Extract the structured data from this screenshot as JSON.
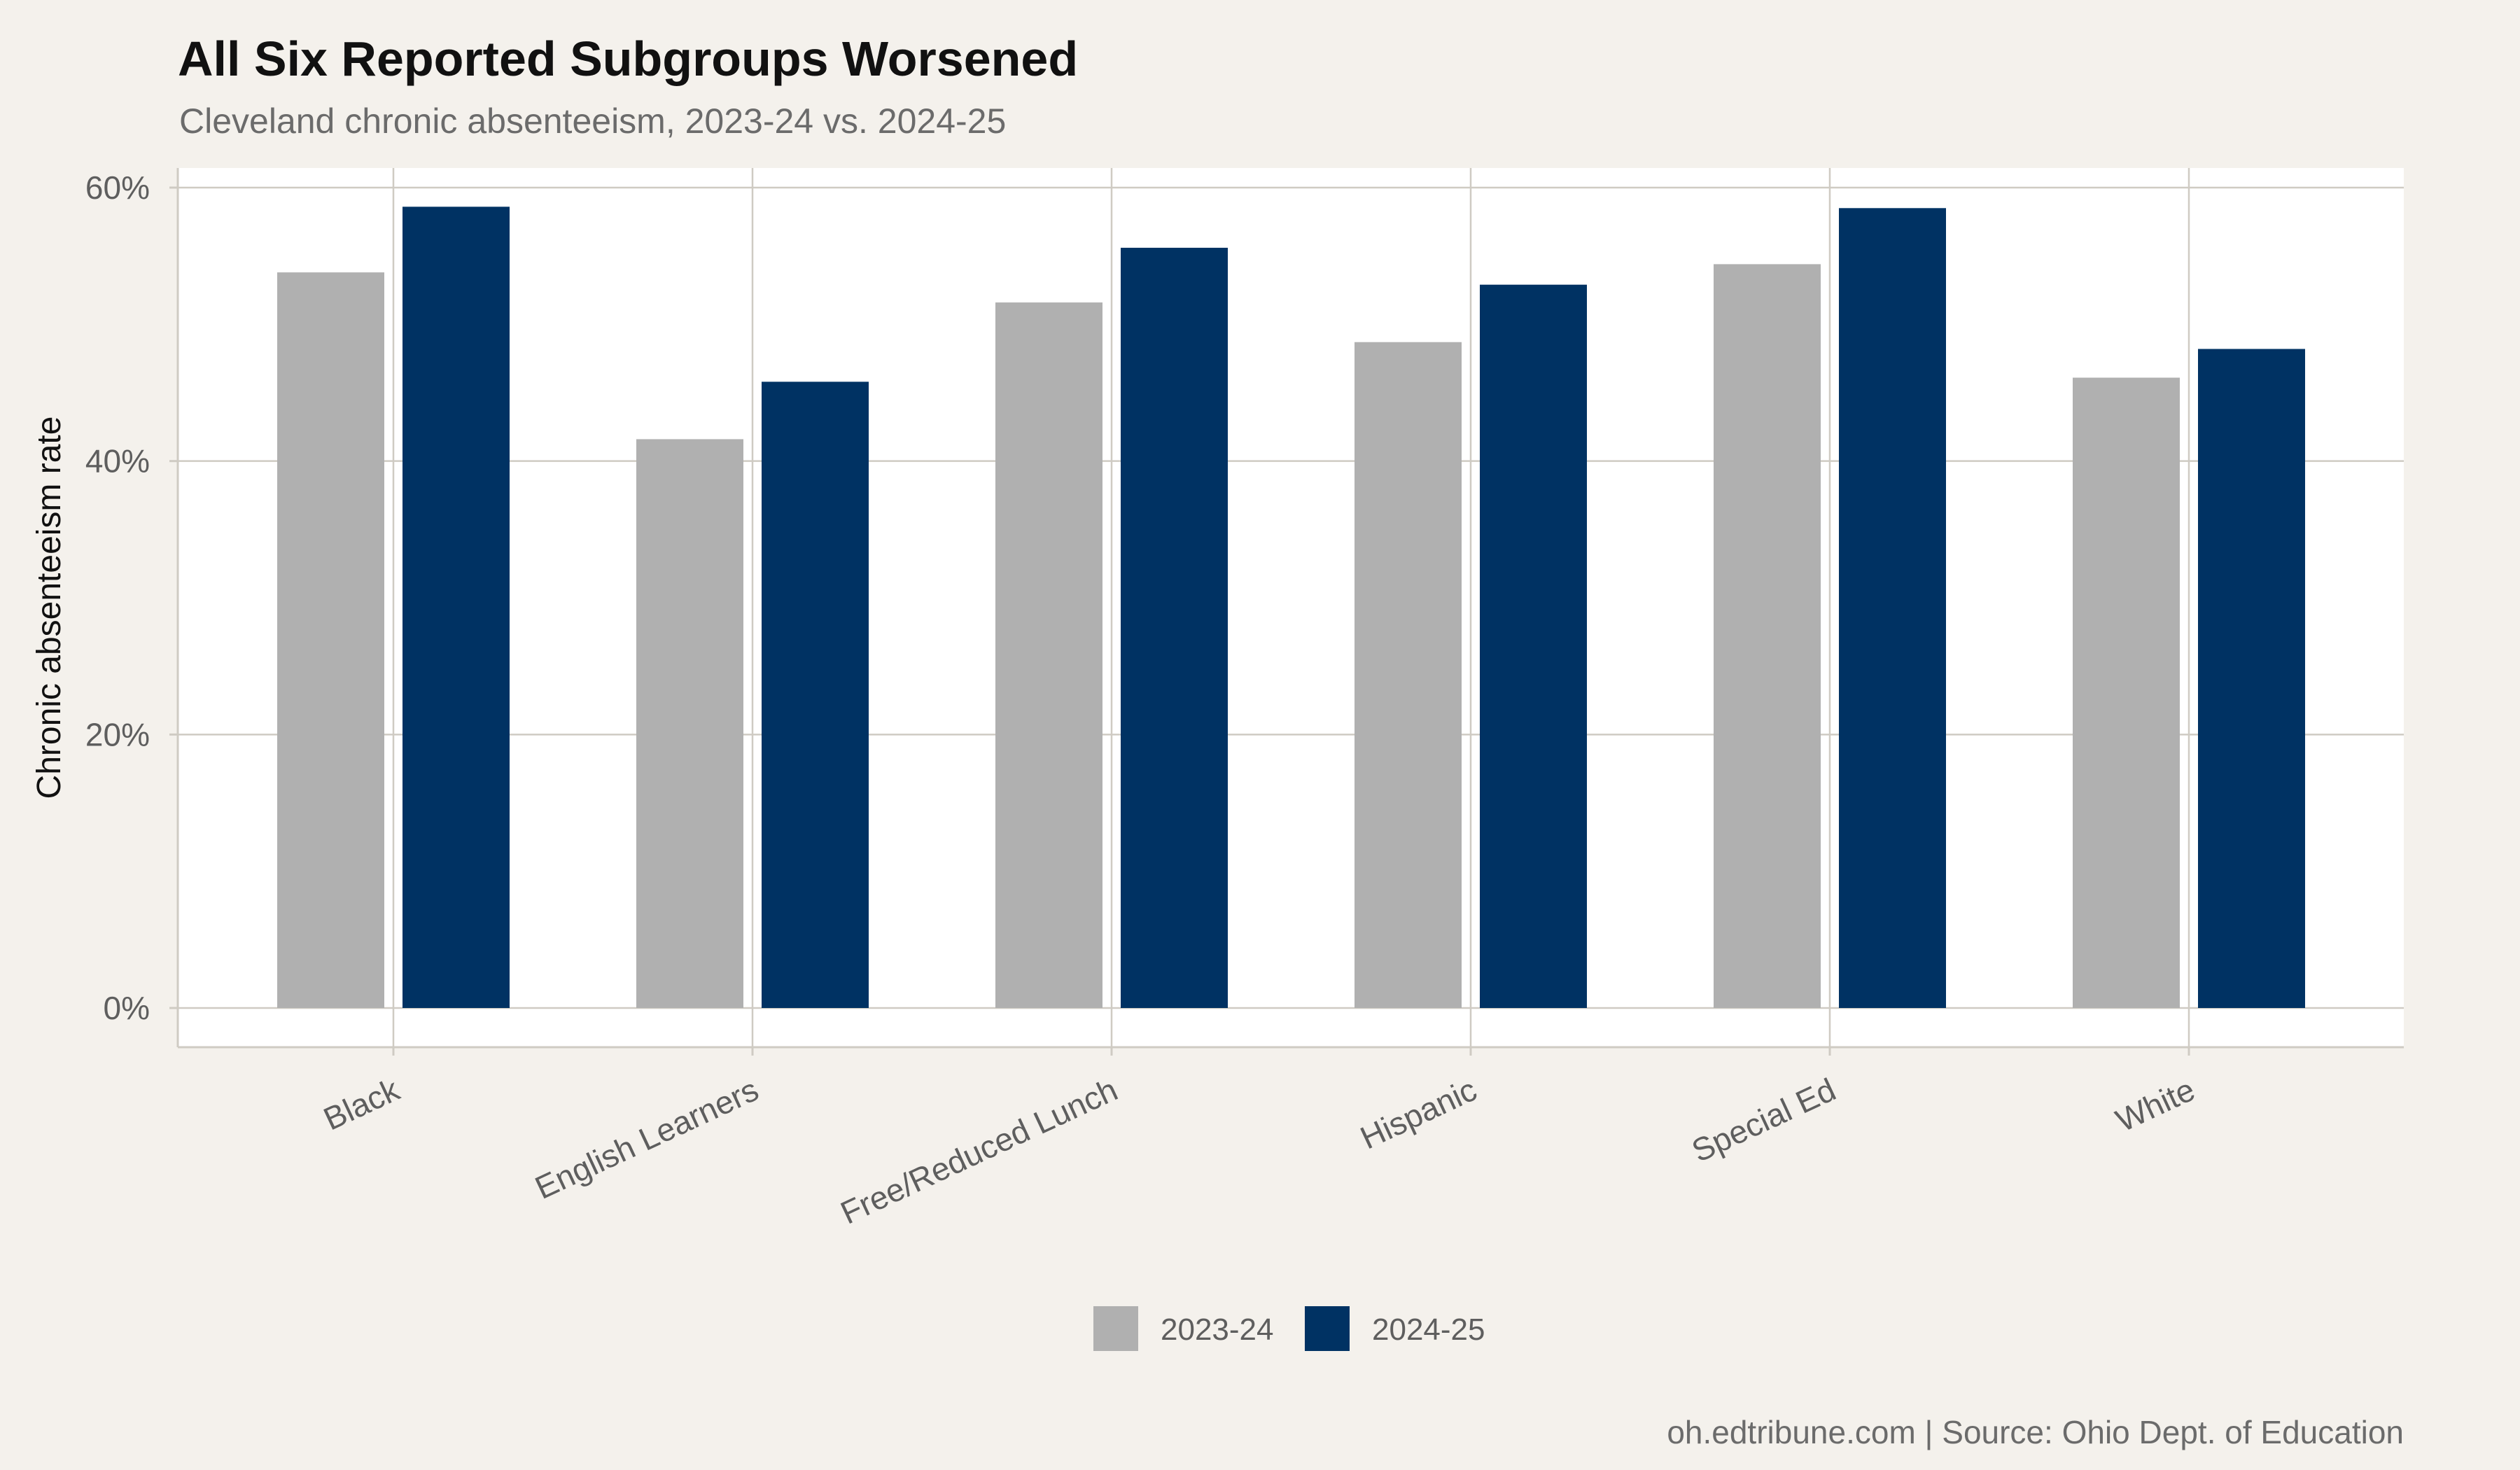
{
  "chart_data": {
    "type": "bar",
    "title": "All Six Reported Subgroups Worsened",
    "subtitle": "Cleveland chronic absenteeism, 2023-24 vs. 2024-25",
    "ylabel": "Chronic absenteeism rate",
    "xlabel": "",
    "ylim": [
      0,
      0.6
    ],
    "yticks": [
      0,
      0.2,
      0.4,
      0.6
    ],
    "ytick_labels": [
      "0%",
      "20%",
      "40%",
      "60%"
    ],
    "categories": [
      "Black",
      "English Learners",
      "Free/Reduced Lunch",
      "Hispanic",
      "Special Ed",
      "White"
    ],
    "series": [
      {
        "name": "2023-24",
        "color": "#b0b0b0",
        "values": [
          0.538,
          0.416,
          0.516,
          0.487,
          0.544,
          0.461
        ]
      },
      {
        "name": "2024-25",
        "color": "#003263",
        "values": [
          0.586,
          0.458,
          0.556,
          0.529,
          0.585,
          0.482
        ]
      }
    ],
    "grid": true,
    "legend_position": "bottom",
    "caption": "oh.edtribune.com | Source: Ohio Dept. of Education",
    "panel_background": "#ffffff",
    "page_background": "#f4f1ec"
  }
}
